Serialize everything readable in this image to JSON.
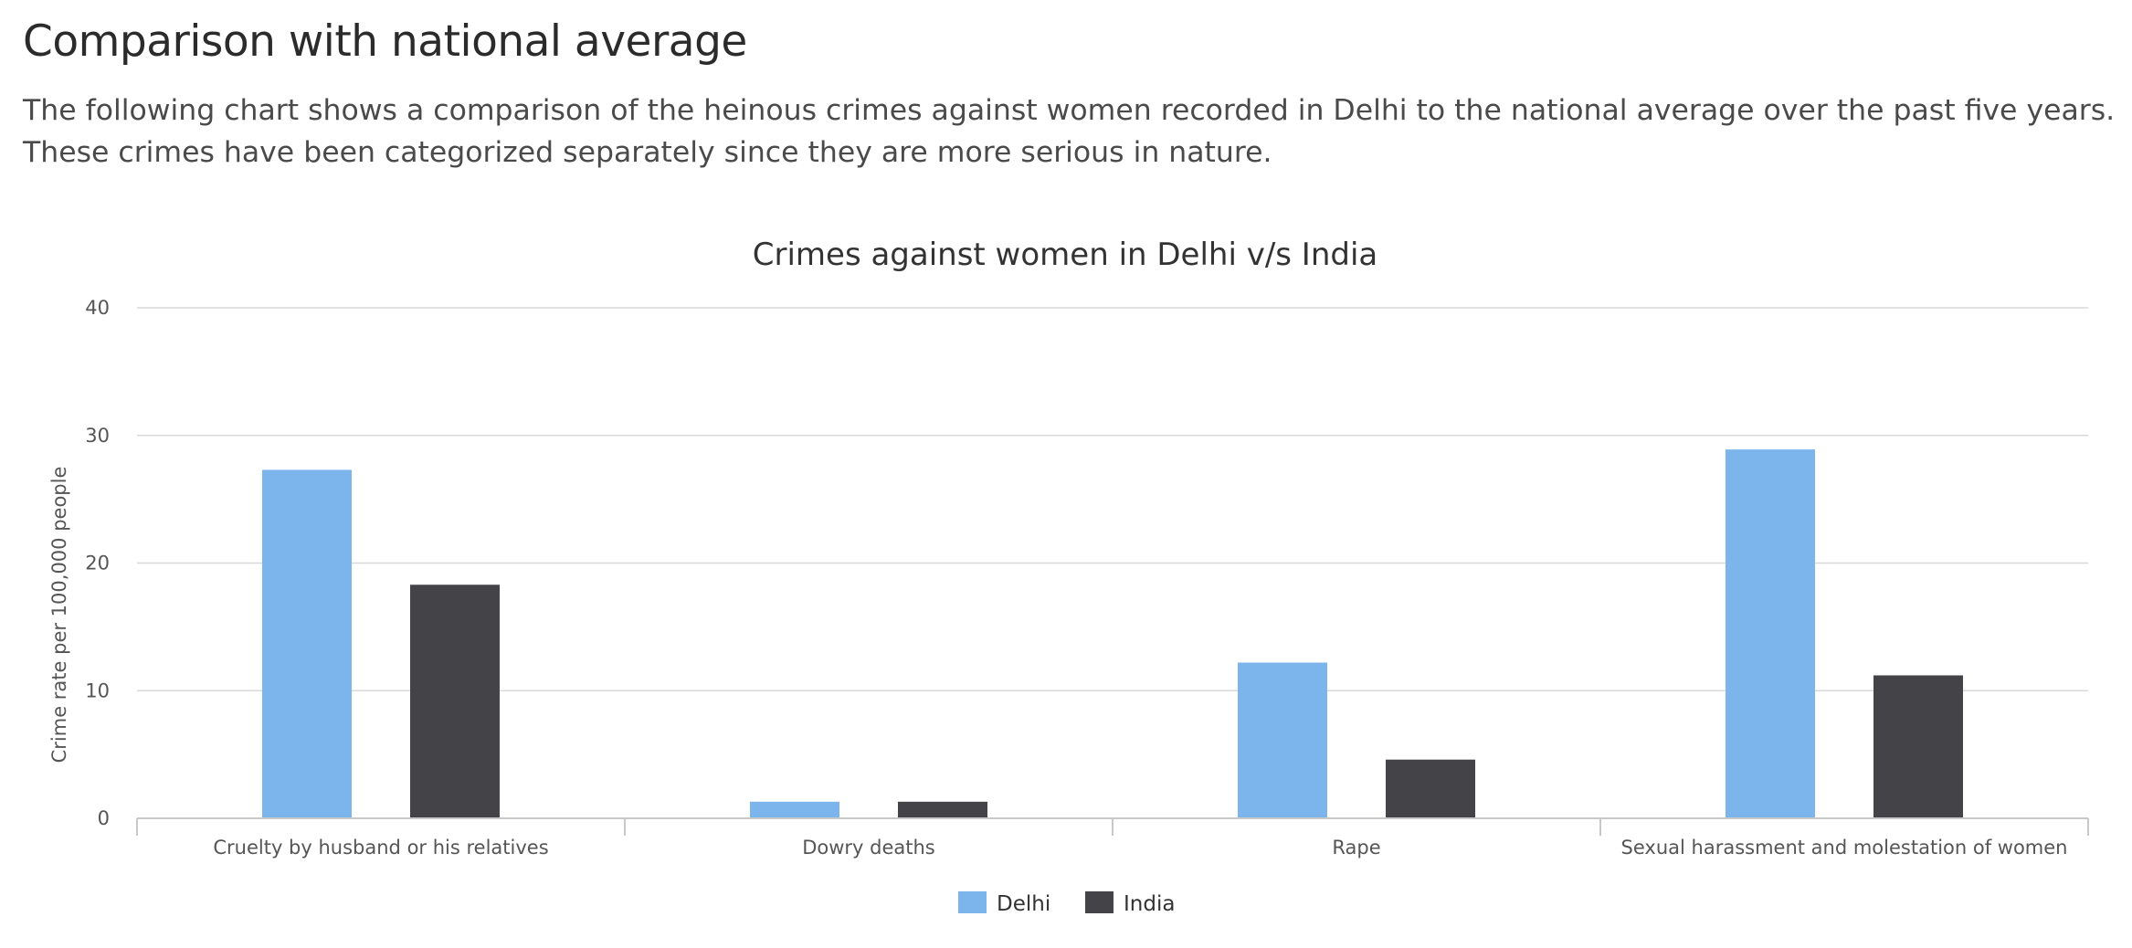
{
  "page": {
    "heading": "Comparison with national average",
    "intro": "The following chart shows a comparison of the heinous crimes against women recorded in Delhi to the national average over the past five years. These crimes have been categorized separately since they are more serious in nature."
  },
  "chart_data": {
    "type": "bar",
    "title": "Crimes against women in Delhi v/s India",
    "xlabel": "",
    "ylabel": "Crime rate per 100,000 people",
    "ylim": [
      0,
      40
    ],
    "yticks": [
      0,
      10,
      20,
      30,
      40
    ],
    "grid": true,
    "legend_position": "bottom-center",
    "categories": [
      "Cruelty by husband or his relatives",
      "Dowry deaths",
      "Rape",
      "Sexual harassment and molestation of women"
    ],
    "series": [
      {
        "name": "Delhi",
        "color": "#7cb5ec",
        "values": [
          27.3,
          1.3,
          12.2,
          28.9
        ]
      },
      {
        "name": "India",
        "color": "#434348",
        "values": [
          18.3,
          1.3,
          4.6,
          11.2
        ]
      }
    ]
  }
}
